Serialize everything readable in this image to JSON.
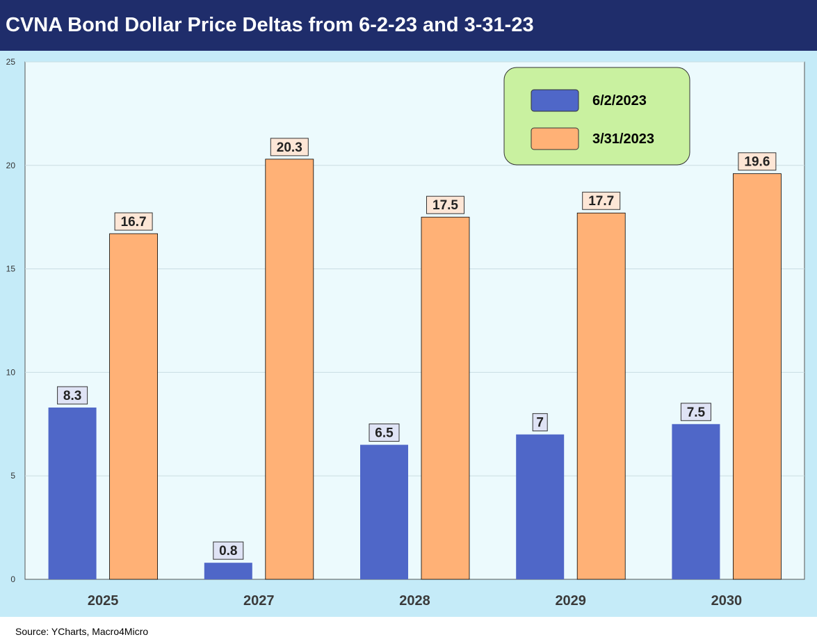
{
  "chart_data": {
    "type": "bar",
    "title": "CVNA Bond Dollar Price Deltas from 6-2-23 and 3-31-23",
    "categories": [
      "2025",
      "2027",
      "2028",
      "2029",
      "2030"
    ],
    "series": [
      {
        "name": "6/2/2023",
        "values": [
          8.3,
          0.8,
          6.5,
          7,
          7.5
        ],
        "labels": [
          "8.3",
          "0.8",
          "6.5",
          "7",
          "7.5"
        ],
        "color": "#4f67c8",
        "label_bg": "#dfe3f5"
      },
      {
        "name": "3/31/2023",
        "values": [
          16.7,
          20.3,
          17.5,
          17.7,
          19.6
        ],
        "labels": [
          "16.7",
          "20.3",
          "17.5",
          "17.7",
          "19.6"
        ],
        "color": "#ffb176",
        "label_bg": "#fde6d6"
      }
    ],
    "ylim": [
      0,
      25
    ],
    "yticks": [
      "0",
      "5",
      "10",
      "15",
      "20",
      "25"
    ],
    "ytick_values": [
      0,
      5,
      10,
      15,
      20,
      25
    ],
    "xlabel": "",
    "ylabel": "",
    "grid": true,
    "legend_position": "top-right",
    "legend_bg": "#c9f1a0"
  },
  "source": "Source: YCharts, Macro4Micro",
  "colors": {
    "title_bg": "#1f2d6b",
    "chart_bg": "#c5ebf8",
    "plot_bg": "#ecfafd"
  }
}
